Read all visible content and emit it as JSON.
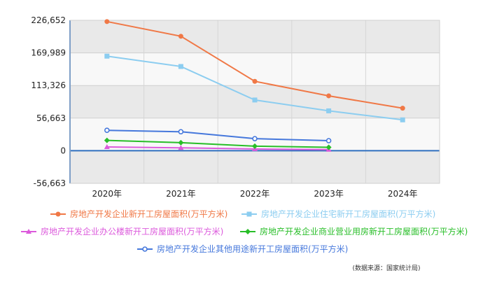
{
  "chart_data": {
    "type": "line",
    "categories": [
      "2020年",
      "2021年",
      "2022年",
      "2023年",
      "2024年"
    ],
    "ylim": [
      -56663,
      226652
    ],
    "y_ticks": [
      "226,652",
      "169,989",
      "113,326",
      "56,663",
      "0",
      "-56,663"
    ],
    "grid": true,
    "legend_position": "bottom",
    "series": [
      {
        "name": "房地产开发企业新开工房屋面积(万平方米)",
        "color": "#f07846",
        "marker": "circle-filled",
        "values": [
          224433,
          198895,
          120587,
          95376,
          73893
        ]
      },
      {
        "name": "房地产开发企业住宅新开工房屋面积(万平方米)",
        "color": "#8ccdf0",
        "marker": "square",
        "values": [
          164329,
          146379,
          88135,
          69286,
          53660
        ]
      },
      {
        "name": "房地产开发企业办公楼新开工房屋面积(万平方米)",
        "color": "#dc5adc",
        "marker": "triangle",
        "values": [
          6500,
          5000,
          3000,
          2000,
          null
        ]
      },
      {
        "name": "房地产开发企业商业营业用房新开工房屋面积(万平方米)",
        "color": "#28be28",
        "marker": "diamond",
        "values": [
          18000,
          14000,
          8000,
          6000,
          null
        ]
      },
      {
        "name": "房地产开发企业其他用途新开工房屋面积(万平方米)",
        "color": "#4678dc",
        "marker": "circle-open",
        "values": [
          35500,
          33000,
          21000,
          17500,
          null
        ]
      }
    ]
  },
  "source_note": "(数据来源：国家统计局)"
}
